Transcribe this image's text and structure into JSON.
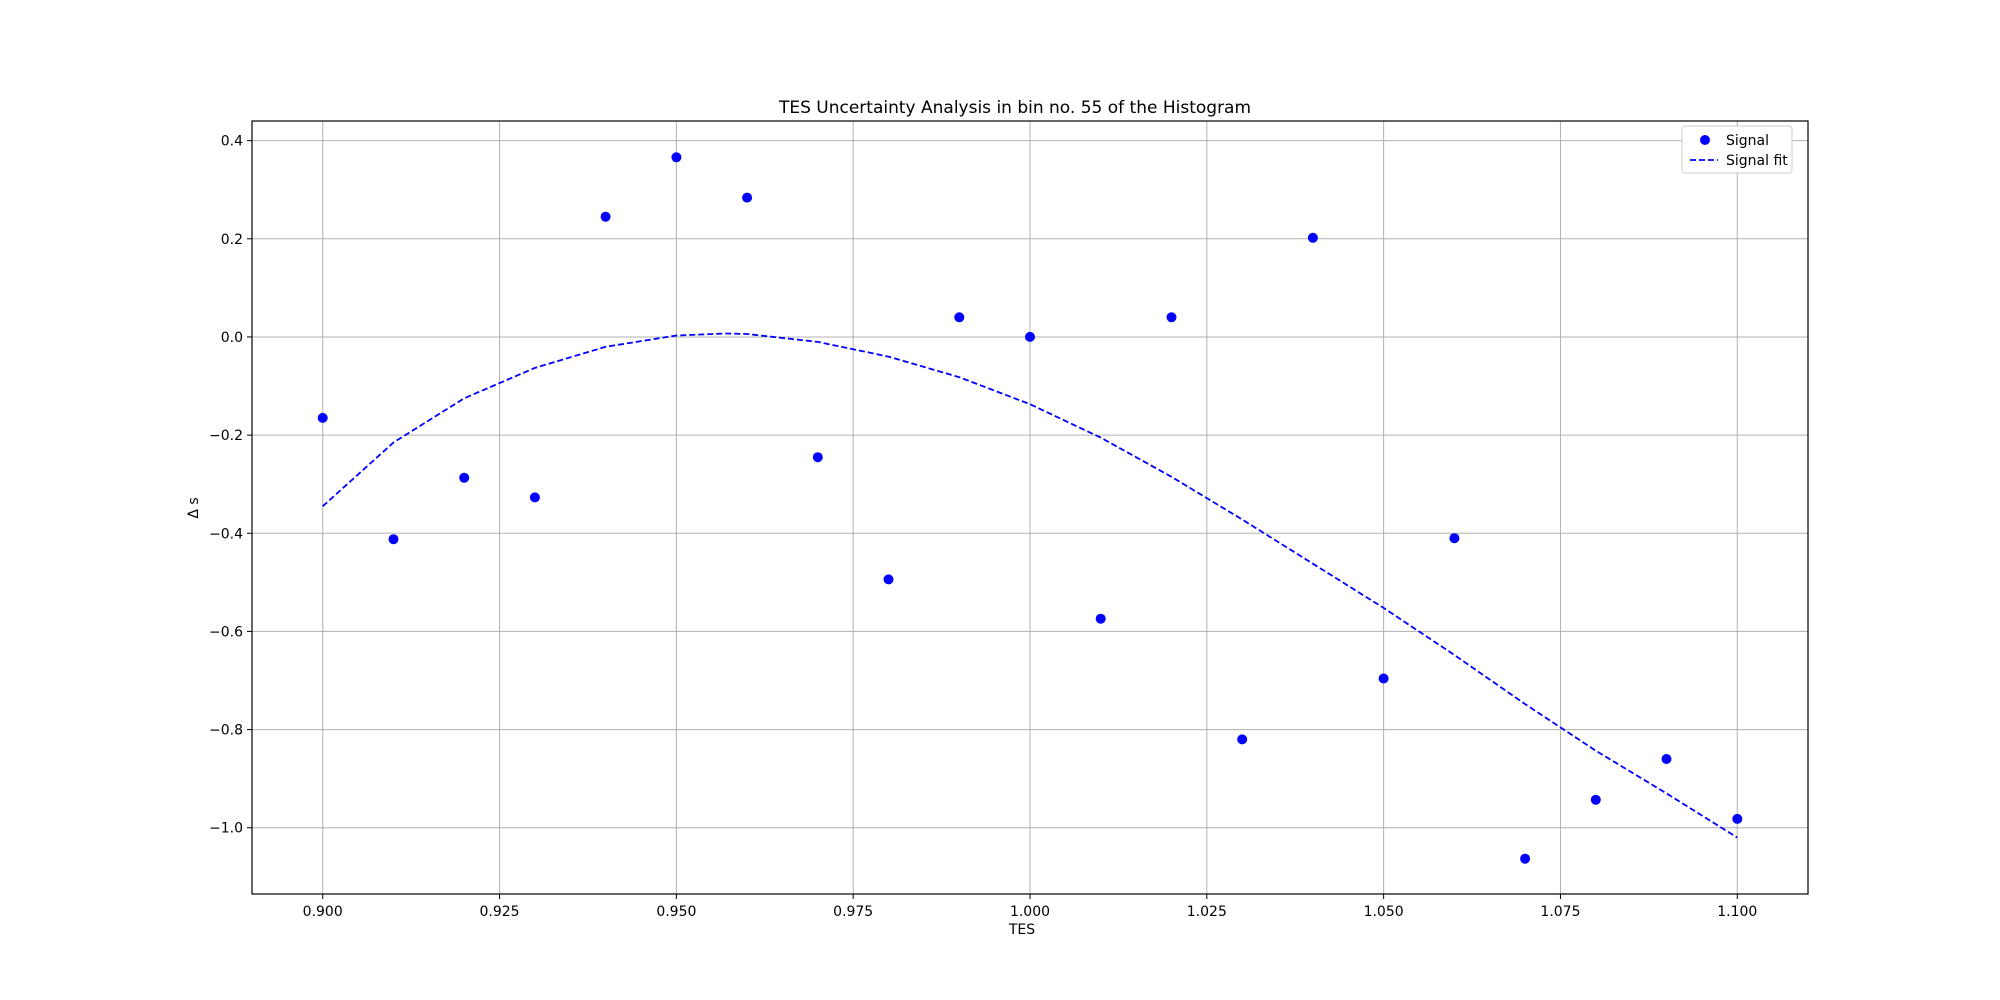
{
  "chart_data": {
    "type": "scatter",
    "title": "TES Uncertainty Analysis in bin no. 55 of the Histogram",
    "xlabel": "TES",
    "ylabel": "Δ s",
    "xlim": [
      0.89,
      1.11
    ],
    "ylim": [
      -1.135,
      0.44
    ],
    "xticks": [
      0.9,
      0.925,
      0.95,
      0.975,
      1.0,
      1.025,
      1.05,
      1.075,
      1.1
    ],
    "xtick_labels": [
      "0.900",
      "0.925",
      "0.950",
      "0.975",
      "1.000",
      "1.025",
      "1.050",
      "1.075",
      "1.100"
    ],
    "yticks": [
      0.4,
      0.2,
      0.0,
      -0.2,
      -0.4,
      -0.6,
      -0.8,
      -1.0
    ],
    "ytick_labels": [
      "0.4",
      "0.2",
      "0.0",
      "−0.2",
      "−0.4",
      "−0.6",
      "−0.8",
      "−1.0"
    ],
    "grid": true,
    "legend_position": "top-right",
    "series": [
      {
        "name": "Signal",
        "kind": "scatter",
        "color": "#0000ff",
        "x": [
          0.9,
          0.91,
          0.92,
          0.93,
          0.94,
          0.95,
          0.96,
          0.97,
          0.98,
          0.99,
          1.0,
          1.01,
          1.02,
          1.03,
          1.04,
          1.05,
          1.06,
          1.07,
          1.08,
          1.09,
          1.1
        ],
        "y": [
          -0.165,
          -0.412,
          -0.287,
          -0.327,
          0.245,
          0.366,
          0.284,
          -0.245,
          -0.494,
          0.04,
          0.0,
          -0.574,
          0.04,
          -0.82,
          0.202,
          -0.696,
          -0.41,
          -1.063,
          -0.943,
          -0.86,
          -0.982
        ]
      },
      {
        "name": "Signal fit",
        "kind": "line",
        "style": "dashed",
        "color": "#0000ff",
        "x": [
          0.9,
          0.91,
          0.92,
          0.93,
          0.94,
          0.95,
          0.957,
          0.96,
          0.97,
          0.98,
          0.99,
          1.0,
          1.01,
          1.02,
          1.03,
          1.04,
          1.05,
          1.06,
          1.07,
          1.08,
          1.09,
          1.1
        ],
        "y": [
          -0.345,
          -0.215,
          -0.125,
          -0.063,
          -0.02,
          0.003,
          0.007,
          0.006,
          -0.01,
          -0.04,
          -0.082,
          -0.137,
          -0.205,
          -0.285,
          -0.372,
          -0.462,
          -0.552,
          -0.648,
          -0.748,
          -0.843,
          -0.93,
          -1.02
        ]
      }
    ]
  }
}
